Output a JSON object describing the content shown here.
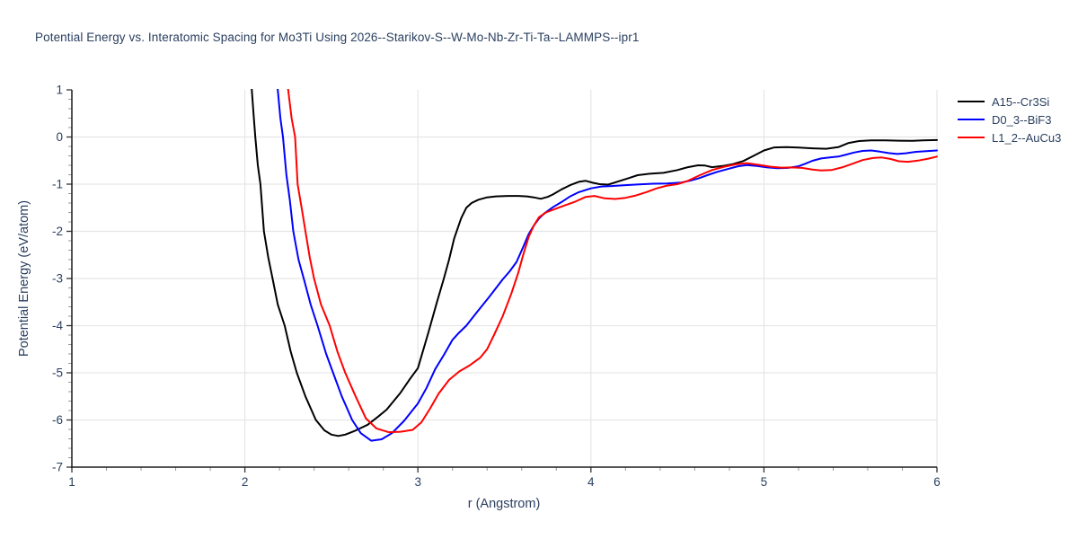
{
  "title": "Potential Energy vs. Interatomic Spacing for Mo3Ti Using 2026--Starikov-S--W-Mo-Nb-Zr-Ti-Ta--LAMMPS--ipr1",
  "colors": {
    "text": "#2a3f5f",
    "grid": "#e6e6e6",
    "axis_line": "#1c1c1c",
    "major_tick": "#333333",
    "minor_tick": "#999999",
    "background": "#ffffff"
  },
  "chart_data": {
    "type": "line",
    "title": "Potential Energy vs. Interatomic Spacing for Mo3Ti Using 2026--Starikov-S--W-Mo-Nb-Zr-Ti-Ta--LAMMPS--ipr1",
    "xlabel": "r (Angstrom)",
    "ylabel": "Potential Energy (eV/atom)",
    "xlim": [
      1,
      6
    ],
    "ylim": [
      -7,
      1
    ],
    "x_ticks": [
      1,
      2,
      3,
      4,
      5,
      6
    ],
    "y_ticks": [
      1,
      0,
      -1,
      -2,
      -3,
      -4,
      -5,
      -6,
      -7
    ],
    "x_grid_at": [
      2,
      3,
      4,
      5,
      6
    ],
    "y_grid_at": [
      0,
      -1,
      -2,
      -3,
      -4,
      -5,
      -6
    ],
    "minor_tick_step": 0.2,
    "grid": true,
    "legend_position": "top-right-outside",
    "series": [
      {
        "name": "A15--Cr3Si",
        "color": "#000000",
        "points": [
          [
            2.03,
            1.4
          ],
          [
            2.04,
            1.0
          ],
          [
            2.05,
            0.5
          ],
          [
            2.06,
            0.0
          ],
          [
            2.075,
            -0.6
          ],
          [
            2.09,
            -1.0
          ],
          [
            2.11,
            -2.0
          ],
          [
            2.135,
            -2.55
          ],
          [
            2.16,
            -3.0
          ],
          [
            2.19,
            -3.55
          ],
          [
            2.23,
            -4.0
          ],
          [
            2.265,
            -4.55
          ],
          [
            2.3,
            -5.0
          ],
          [
            2.35,
            -5.5
          ],
          [
            2.41,
            -6.0
          ],
          [
            2.46,
            -6.22
          ],
          [
            2.5,
            -6.31
          ],
          [
            2.54,
            -6.34
          ],
          [
            2.58,
            -6.31
          ],
          [
            2.63,
            -6.24
          ],
          [
            2.71,
            -6.1
          ],
          [
            2.77,
            -5.93
          ],
          [
            2.82,
            -5.78
          ],
          [
            2.9,
            -5.42
          ],
          [
            2.95,
            -5.15
          ],
          [
            3.0,
            -4.9
          ],
          [
            3.06,
            -4.15
          ],
          [
            3.11,
            -3.5
          ],
          [
            3.15,
            -3.0
          ],
          [
            3.18,
            -2.6
          ],
          [
            3.21,
            -2.15
          ],
          [
            3.25,
            -1.72
          ],
          [
            3.28,
            -1.5
          ],
          [
            3.31,
            -1.4
          ],
          [
            3.35,
            -1.33
          ],
          [
            3.4,
            -1.28
          ],
          [
            3.45,
            -1.26
          ],
          [
            3.52,
            -1.25
          ],
          [
            3.58,
            -1.25
          ],
          [
            3.63,
            -1.26
          ],
          [
            3.67,
            -1.28
          ],
          [
            3.71,
            -1.31
          ],
          [
            3.75,
            -1.27
          ],
          [
            3.78,
            -1.22
          ],
          [
            3.83,
            -1.11
          ],
          [
            3.88,
            -1.02
          ],
          [
            3.93,
            -0.95
          ],
          [
            3.97,
            -0.93
          ],
          [
            4.01,
            -0.97
          ],
          [
            4.05,
            -1.0
          ],
          [
            4.1,
            -1.01
          ],
          [
            4.15,
            -0.95
          ],
          [
            4.22,
            -0.87
          ],
          [
            4.27,
            -0.81
          ],
          [
            4.34,
            -0.78
          ],
          [
            4.42,
            -0.76
          ],
          [
            4.5,
            -0.7
          ],
          [
            4.56,
            -0.64
          ],
          [
            4.62,
            -0.6
          ],
          [
            4.66,
            -0.605
          ],
          [
            4.7,
            -0.64
          ],
          [
            4.76,
            -0.615
          ],
          [
            4.82,
            -0.575
          ],
          [
            4.88,
            -0.51
          ],
          [
            4.94,
            -0.4
          ],
          [
            5.0,
            -0.285
          ],
          [
            5.06,
            -0.22
          ],
          [
            5.13,
            -0.215
          ],
          [
            5.2,
            -0.225
          ],
          [
            5.28,
            -0.24
          ],
          [
            5.36,
            -0.25
          ],
          [
            5.43,
            -0.215
          ],
          [
            5.49,
            -0.125
          ],
          [
            5.55,
            -0.085
          ],
          [
            5.62,
            -0.07
          ],
          [
            5.7,
            -0.07
          ],
          [
            5.78,
            -0.078
          ],
          [
            5.85,
            -0.082
          ],
          [
            5.92,
            -0.072
          ],
          [
            6.0,
            -0.065
          ]
        ]
      },
      {
        "name": "D0_3--BiF3",
        "color": "#0000ff",
        "points": [
          [
            2.18,
            1.4
          ],
          [
            2.19,
            1.0
          ],
          [
            2.205,
            0.4
          ],
          [
            2.22,
            0.0
          ],
          [
            2.24,
            -0.8
          ],
          [
            2.26,
            -1.35
          ],
          [
            2.28,
            -2.0
          ],
          [
            2.31,
            -2.6
          ],
          [
            2.34,
            -3.0
          ],
          [
            2.38,
            -3.55
          ],
          [
            2.42,
            -4.0
          ],
          [
            2.47,
            -4.6
          ],
          [
            2.51,
            -5.0
          ],
          [
            2.56,
            -5.5
          ],
          [
            2.62,
            -6.0
          ],
          [
            2.67,
            -6.28
          ],
          [
            2.73,
            -6.44
          ],
          [
            2.79,
            -6.41
          ],
          [
            2.85,
            -6.28
          ],
          [
            2.92,
            -6.02
          ],
          [
            3.0,
            -5.65
          ],
          [
            3.05,
            -5.32
          ],
          [
            3.1,
            -4.92
          ],
          [
            3.15,
            -4.62
          ],
          [
            3.2,
            -4.3
          ],
          [
            3.23,
            -4.18
          ],
          [
            3.28,
            -4.0
          ],
          [
            3.34,
            -3.72
          ],
          [
            3.41,
            -3.4
          ],
          [
            3.45,
            -3.21
          ],
          [
            3.49,
            -3.02
          ],
          [
            3.53,
            -2.85
          ],
          [
            3.57,
            -2.65
          ],
          [
            3.61,
            -2.32
          ],
          [
            3.64,
            -2.06
          ],
          [
            3.67,
            -1.88
          ],
          [
            3.7,
            -1.73
          ],
          [
            3.73,
            -1.62
          ],
          [
            3.78,
            -1.49
          ],
          [
            3.83,
            -1.38
          ],
          [
            3.88,
            -1.26
          ],
          [
            3.93,
            -1.17
          ],
          [
            4.0,
            -1.09
          ],
          [
            4.06,
            -1.05
          ],
          [
            4.12,
            -1.04
          ],
          [
            4.2,
            -1.02
          ],
          [
            4.28,
            -1.005
          ],
          [
            4.36,
            -0.99
          ],
          [
            4.44,
            -0.985
          ],
          [
            4.52,
            -0.965
          ],
          [
            4.57,
            -0.93
          ],
          [
            4.62,
            -0.88
          ],
          [
            4.68,
            -0.8
          ],
          [
            4.73,
            -0.74
          ],
          [
            4.79,
            -0.68
          ],
          [
            4.85,
            -0.62
          ],
          [
            4.9,
            -0.595
          ],
          [
            4.96,
            -0.615
          ],
          [
            5.02,
            -0.645
          ],
          [
            5.08,
            -0.66
          ],
          [
            5.14,
            -0.655
          ],
          [
            5.2,
            -0.62
          ],
          [
            5.24,
            -0.565
          ],
          [
            5.28,
            -0.505
          ],
          [
            5.33,
            -0.455
          ],
          [
            5.38,
            -0.435
          ],
          [
            5.43,
            -0.415
          ],
          [
            5.47,
            -0.38
          ],
          [
            5.52,
            -0.33
          ],
          [
            5.57,
            -0.295
          ],
          [
            5.62,
            -0.285
          ],
          [
            5.67,
            -0.31
          ],
          [
            5.72,
            -0.34
          ],
          [
            5.77,
            -0.36
          ],
          [
            5.82,
            -0.345
          ],
          [
            5.88,
            -0.315
          ],
          [
            5.94,
            -0.3
          ],
          [
            6.0,
            -0.285
          ]
        ]
      },
      {
        "name": "L1_2--AuCu3",
        "color": "#ff0000",
        "points": [
          [
            2.24,
            1.4
          ],
          [
            2.25,
            1.0
          ],
          [
            2.27,
            0.4
          ],
          [
            2.29,
            0.0
          ],
          [
            2.305,
            -1.0
          ],
          [
            2.33,
            -1.55
          ],
          [
            2.35,
            -2.0
          ],
          [
            2.375,
            -2.55
          ],
          [
            2.4,
            -3.0
          ],
          [
            2.44,
            -3.55
          ],
          [
            2.49,
            -4.0
          ],
          [
            2.535,
            -4.55
          ],
          [
            2.58,
            -5.0
          ],
          [
            2.64,
            -5.5
          ],
          [
            2.7,
            -5.97
          ],
          [
            2.76,
            -6.18
          ],
          [
            2.83,
            -6.26
          ],
          [
            2.9,
            -6.25
          ],
          [
            2.97,
            -6.21
          ],
          [
            3.02,
            -6.05
          ],
          [
            3.07,
            -5.76
          ],
          [
            3.12,
            -5.44
          ],
          [
            3.18,
            -5.15
          ],
          [
            3.24,
            -4.97
          ],
          [
            3.3,
            -4.84
          ],
          [
            3.36,
            -4.68
          ],
          [
            3.4,
            -4.5
          ],
          [
            3.44,
            -4.2
          ],
          [
            3.49,
            -3.8
          ],
          [
            3.54,
            -3.32
          ],
          [
            3.58,
            -2.88
          ],
          [
            3.61,
            -2.48
          ],
          [
            3.64,
            -2.12
          ],
          [
            3.67,
            -1.88
          ],
          [
            3.7,
            -1.7
          ],
          [
            3.74,
            -1.6
          ],
          [
            3.79,
            -1.53
          ],
          [
            3.85,
            -1.45
          ],
          [
            3.91,
            -1.37
          ],
          [
            3.97,
            -1.27
          ],
          [
            4.02,
            -1.25
          ],
          [
            4.08,
            -1.3
          ],
          [
            4.14,
            -1.315
          ],
          [
            4.2,
            -1.29
          ],
          [
            4.26,
            -1.24
          ],
          [
            4.32,
            -1.17
          ],
          [
            4.38,
            -1.09
          ],
          [
            4.44,
            -1.03
          ],
          [
            4.5,
            -1.0
          ],
          [
            4.56,
            -0.93
          ],
          [
            4.63,
            -0.81
          ],
          [
            4.7,
            -0.7
          ],
          [
            4.77,
            -0.63
          ],
          [
            4.84,
            -0.58
          ],
          [
            4.9,
            -0.555
          ],
          [
            4.97,
            -0.59
          ],
          [
            5.04,
            -0.63
          ],
          [
            5.1,
            -0.65
          ],
          [
            5.16,
            -0.645
          ],
          [
            5.22,
            -0.655
          ],
          [
            5.28,
            -0.69
          ],
          [
            5.33,
            -0.71
          ],
          [
            5.39,
            -0.7
          ],
          [
            5.45,
            -0.645
          ],
          [
            5.51,
            -0.57
          ],
          [
            5.57,
            -0.49
          ],
          [
            5.63,
            -0.445
          ],
          [
            5.68,
            -0.435
          ],
          [
            5.73,
            -0.465
          ],
          [
            5.78,
            -0.515
          ],
          [
            5.83,
            -0.525
          ],
          [
            5.89,
            -0.5
          ],
          [
            5.95,
            -0.46
          ],
          [
            6.0,
            -0.415
          ]
        ]
      }
    ]
  }
}
